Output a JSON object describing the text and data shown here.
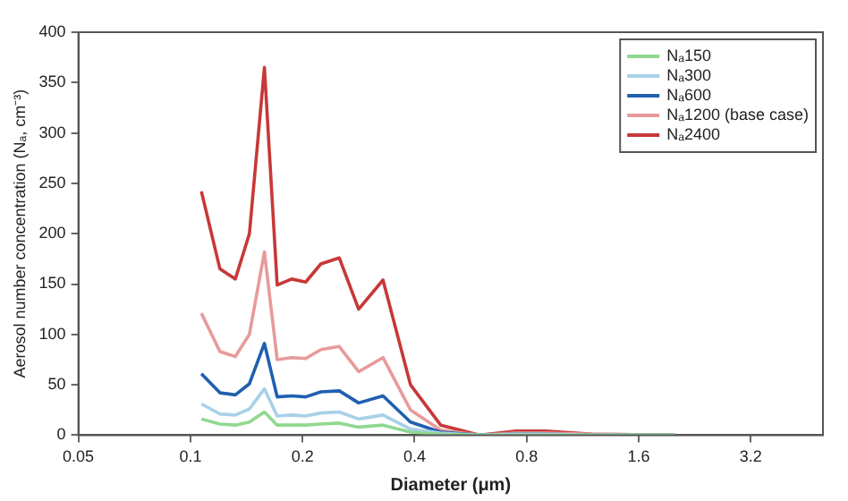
{
  "chart_data": {
    "type": "line",
    "xlabel": "Diameter (μm)",
    "ylabel": "Aerosol number concentration (Nₐ, cm⁻³)",
    "x": [
      0.107,
      0.12,
      0.132,
      0.144,
      0.158,
      0.171,
      0.187,
      0.204,
      0.224,
      0.251,
      0.283,
      0.329,
      0.39,
      0.47,
      0.6,
      0.75,
      0.9,
      1.2,
      2.0
    ],
    "log": "x",
    "xlim": [
      0.05,
      5
    ],
    "xticks": [
      0.05,
      0.1,
      0.2,
      0.4,
      0.8,
      1.6,
      3.2
    ],
    "ylim": [
      0,
      400
    ],
    "yticks": [
      0,
      50,
      100,
      150,
      200,
      250,
      300,
      350,
      400
    ],
    "grid": false,
    "legend": "top right",
    "marker": "none",
    "line_style": "solid",
    "series": [
      {
        "name": "Nₐ150",
        "color": "#90d890",
        "values": [
          16,
          11,
          10,
          13,
          23,
          10,
          10,
          10,
          11,
          12,
          8,
          10,
          3,
          1,
          0,
          0,
          0,
          0,
          0
        ]
      },
      {
        "name": "Nₐ300",
        "color": "#a8d0e8",
        "values": [
          31,
          21,
          20,
          26,
          46,
          19,
          20,
          19,
          22,
          23,
          16,
          20,
          6,
          2,
          0,
          1,
          1,
          0,
          0
        ]
      },
      {
        "name": "Nₐ600",
        "color": "#1f5fb0",
        "values": [
          61,
          42,
          40,
          51,
          91,
          38,
          39,
          38,
          43,
          44,
          32,
          39,
          13,
          3,
          0,
          1,
          1,
          0,
          0
        ]
      },
      {
        "name": "Nₐ1200 (base case)",
        "color": "#e89a9a",
        "values": [
          121,
          83,
          78,
          100,
          182,
          75,
          77,
          76,
          85,
          88,
          63,
          77,
          25,
          5,
          0,
          2,
          2,
          1,
          0
        ]
      },
      {
        "name": "Nₐ2400",
        "color": "#c83838",
        "values": [
          242,
          165,
          155,
          200,
          365,
          149,
          155,
          152,
          170,
          176,
          125,
          154,
          50,
          10,
          0,
          4,
          4,
          1,
          0
        ]
      }
    ]
  }
}
